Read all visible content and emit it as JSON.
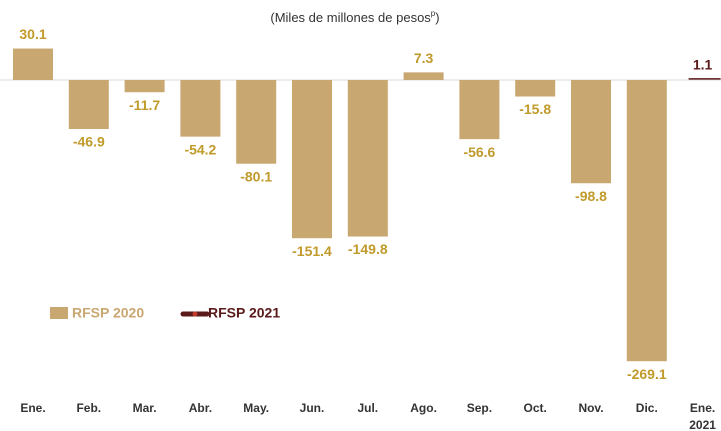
{
  "chart_data": {
    "type": "bar",
    "subtitle": "(Miles de millones de pesos",
    "subtitle_superscript": "p",
    "subtitle_end": ")",
    "categories": [
      [
        "Ene."
      ],
      [
        "Feb."
      ],
      [
        "Mar."
      ],
      [
        "Abr."
      ],
      [
        "May."
      ],
      [
        "Jun."
      ],
      [
        "Jul."
      ],
      [
        "Ago."
      ],
      [
        "Sep."
      ],
      [
        "Oct."
      ],
      [
        "Nov."
      ],
      [
        "Dic."
      ],
      [
        "Ene.",
        "2021"
      ]
    ],
    "series": [
      {
        "name": "RFSP 2020",
        "color": "#c8a771",
        "label_color": "#c09a2a",
        "values": [
          30.1,
          -46.9,
          -11.7,
          -54.2,
          -80.1,
          -151.4,
          -149.8,
          7.3,
          -56.6,
          -15.8,
          -98.8,
          -269.1,
          null
        ]
      },
      {
        "name": "RFSP 2021",
        "color": "#5a1a1a",
        "label_color": "#5a1a1a",
        "values": [
          null,
          null,
          null,
          null,
          null,
          null,
          null,
          null,
          null,
          null,
          null,
          null,
          1.1
        ]
      }
    ]
  }
}
